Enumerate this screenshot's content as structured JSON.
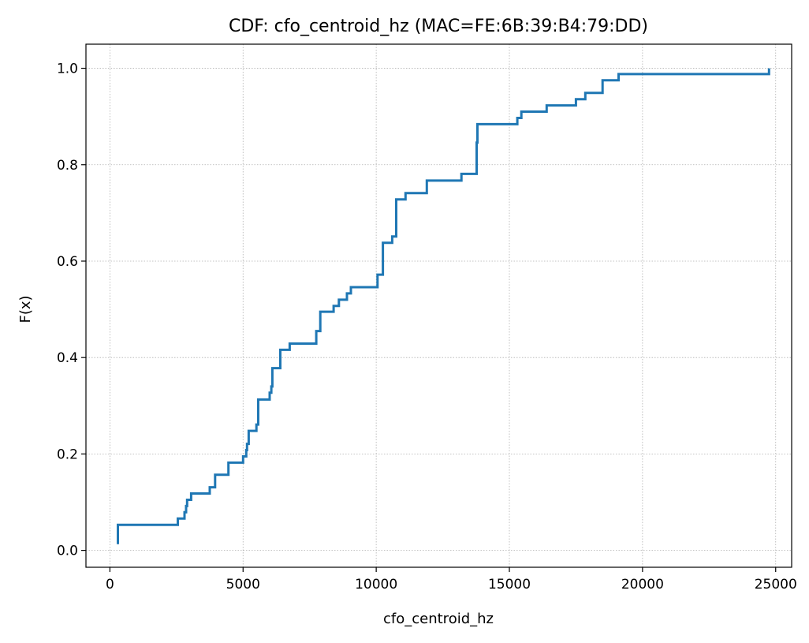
{
  "chart_data": {
    "type": "line",
    "title": "CDF: cfo_centroid_hz (MAC=FE:6B:39:B4:79:DD)",
    "xlabel": "cfo_centroid_hz",
    "ylabel": "F(x)",
    "xlim": [
      -900,
      25600
    ],
    "ylim": [
      -0.035,
      1.05
    ],
    "xticks": [
      0,
      5000,
      10000,
      15000,
      20000,
      25000
    ],
    "xtick_labels": [
      "0",
      "5000",
      "10000",
      "15000",
      "20000",
      "25000"
    ],
    "yticks": [
      0.0,
      0.2,
      0.4,
      0.6,
      0.8,
      1.0
    ],
    "ytick_labels": [
      "0.0",
      "0.2",
      "0.4",
      "0.6",
      "0.8",
      "1.0"
    ],
    "grid": true,
    "line_style": "steps-post",
    "series_color": "#1f77b4",
    "series": [
      {
        "x": [
          300,
          300,
          2550,
          2800,
          2860,
          2900,
          3050,
          3750,
          3850,
          3950,
          4450,
          5000,
          5120,
          5150,
          5210,
          5240,
          5500,
          5570,
          6000,
          6060,
          6100,
          6400,
          6750,
          7750,
          7800,
          7900,
          8400,
          8600,
          8900,
          8950,
          9050,
          10050,
          10250,
          10300,
          10600,
          10750,
          11100,
          11900,
          13200,
          13770,
          13800,
          15300,
          15450,
          16400,
          17500,
          17850,
          18500,
          19100,
          24750
        ],
        "y": [
          0.013,
          0.053,
          0.066,
          0.079,
          0.092,
          0.105,
          0.118,
          0.131,
          0.131,
          0.157,
          0.182,
          0.195,
          0.208,
          0.221,
          0.248,
          0.248,
          0.261,
          0.313,
          0.327,
          0.34,
          0.378,
          0.416,
          0.429,
          0.455,
          0.455,
          0.495,
          0.507,
          0.52,
          0.533,
          0.533,
          0.546,
          0.572,
          0.638,
          0.638,
          0.651,
          0.728,
          0.741,
          0.767,
          0.781,
          0.846,
          0.884,
          0.897,
          0.91,
          0.923,
          0.936,
          0.949,
          0.975,
          0.988,
          1.0
        ]
      }
    ]
  }
}
